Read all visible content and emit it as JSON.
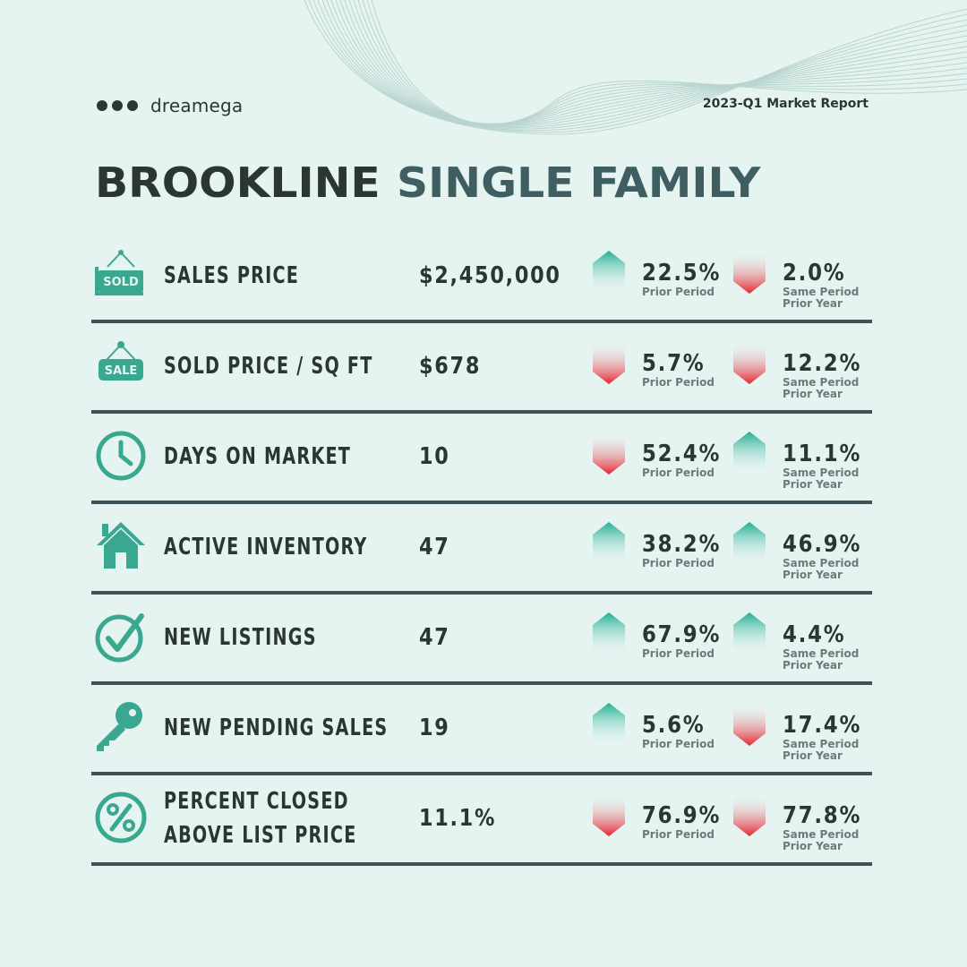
{
  "brand": {
    "name": "dreamega"
  },
  "report_title": "2023-Q1 Market Report",
  "title": {
    "city": "BROOKLINE",
    "property_type": "SINGLE FAMILY"
  },
  "colors": {
    "up": "#2bb39a",
    "down": "#e8333f",
    "teal": "#3aa891",
    "divider": "#3e5355",
    "background": "#e6f4f1"
  },
  "rows": [
    {
      "icon": "sold-sign-icon",
      "metric": "SALES PRICE",
      "value": "$2,450,000",
      "prior": {
        "dir": "up",
        "pct": "22.5%",
        "label": "Prior Period"
      },
      "year": {
        "dir": "down",
        "pct": "2.0%",
        "label1": "Same Period",
        "label2": "Prior Year"
      }
    },
    {
      "icon": "sale-tag-icon",
      "metric": "SOLD PRICE / SQ FT",
      "value": "$678",
      "prior": {
        "dir": "down",
        "pct": "5.7%",
        "label": "Prior Period"
      },
      "year": {
        "dir": "down",
        "pct": "12.2%",
        "label1": "Same Period",
        "label2": "Prior Year"
      }
    },
    {
      "icon": "clock-icon",
      "metric": "DAYS ON MARKET",
      "value": "10",
      "prior": {
        "dir": "down",
        "pct": "52.4%",
        "label": "Prior Period"
      },
      "year": {
        "dir": "up",
        "pct": "11.1%",
        "label1": "Same Period",
        "label2": "Prior Year"
      }
    },
    {
      "icon": "house-icon",
      "metric": "ACTIVE INVENTORY",
      "value": "47",
      "prior": {
        "dir": "up",
        "pct": "38.2%",
        "label": "Prior Period"
      },
      "year": {
        "dir": "up",
        "pct": "46.9%",
        "label1": "Same Period",
        "label2": "Prior Year"
      }
    },
    {
      "icon": "check-circle-icon",
      "metric": "NEW LISTINGS",
      "value": "47",
      "prior": {
        "dir": "up",
        "pct": "67.9%",
        "label": "Prior Period"
      },
      "year": {
        "dir": "up",
        "pct": "4.4%",
        "label1": "Same Period",
        "label2": "Prior Year"
      }
    },
    {
      "icon": "key-icon",
      "metric": "NEW PENDING SALES",
      "value": "19",
      "prior": {
        "dir": "up",
        "pct": "5.6%",
        "label": "Prior Period"
      },
      "year": {
        "dir": "down",
        "pct": "17.4%",
        "label1": "Same Period",
        "label2": "Prior Year"
      }
    },
    {
      "icon": "percent-icon",
      "metric_line1": "PERCENT CLOSED",
      "metric_line2": "ABOVE LIST PRICE",
      "value": "11.1%",
      "prior": {
        "dir": "down",
        "pct": "76.9%",
        "label": "Prior Period"
      },
      "year": {
        "dir": "down",
        "pct": "77.8%",
        "label1": "Same Period",
        "label2": "Prior Year"
      }
    }
  ]
}
